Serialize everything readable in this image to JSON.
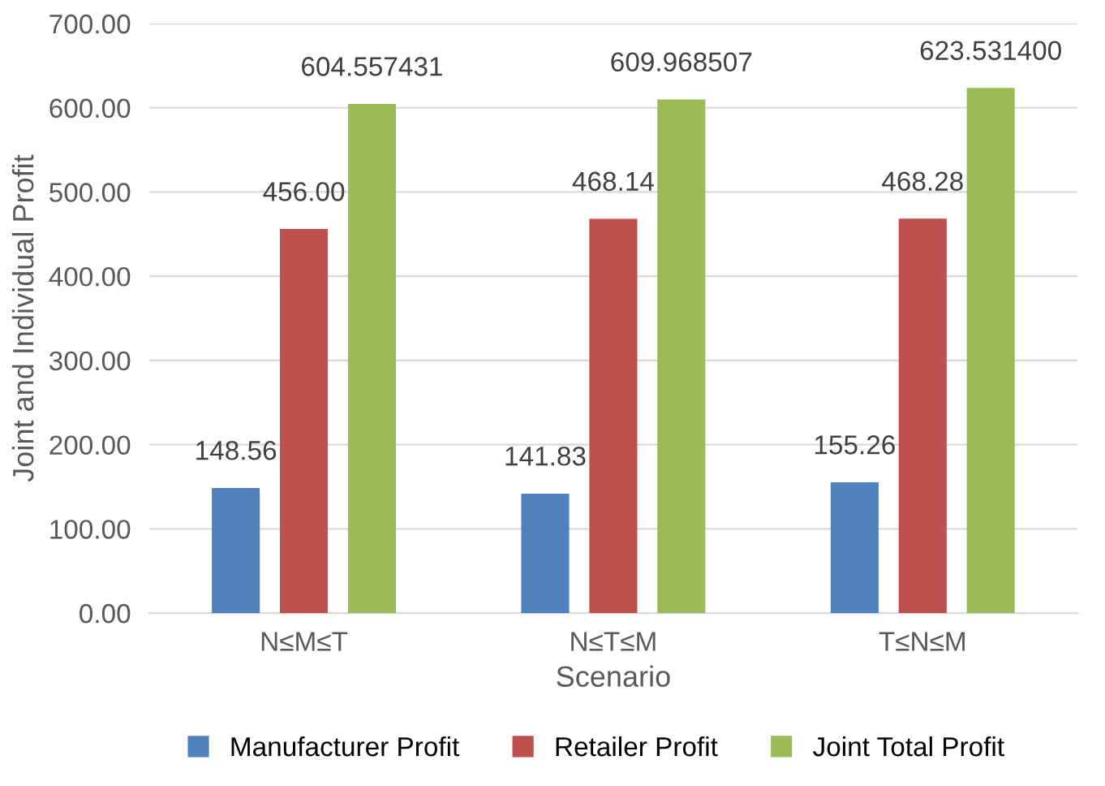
{
  "chart_data": {
    "type": "bar",
    "xlabel": "Scenario",
    "ylabel": "Joint and Individual Profit",
    "categories": [
      "N≤M≤T",
      "N≤T≤M",
      "T≤N≤M"
    ],
    "series": [
      {
        "name": "Manufacturer Profit",
        "color": "#4f81bd",
        "values": [
          148.56,
          141.83,
          155.26
        ],
        "value_labels": [
          "148.56",
          "141.83",
          "155.26"
        ]
      },
      {
        "name": "Retailer Profit",
        "color": "#c0504d",
        "values": [
          456.0,
          468.14,
          468.28
        ],
        "value_labels": [
          "456.00",
          "468.14",
          "468.28"
        ]
      },
      {
        "name": "Joint Total Profit",
        "color": "#9bbb59",
        "values": [
          604.557431,
          609.968507,
          623.5314
        ],
        "value_labels": [
          "604.557431",
          "609.968507",
          "623.531400"
        ]
      }
    ],
    "ylim": [
      0,
      700
    ],
    "yticks": [
      {
        "value": 0,
        "label": "0.00"
      },
      {
        "value": 100,
        "label": "100.00"
      },
      {
        "value": 200,
        "label": "200.00"
      },
      {
        "value": 300,
        "label": "300.00"
      },
      {
        "value": 400,
        "label": "400.00"
      },
      {
        "value": 500,
        "label": "500.00"
      },
      {
        "value": 600,
        "label": "600.00"
      },
      {
        "value": 700,
        "label": "700.00"
      }
    ],
    "grid": "y",
    "legend": "bottom"
  }
}
